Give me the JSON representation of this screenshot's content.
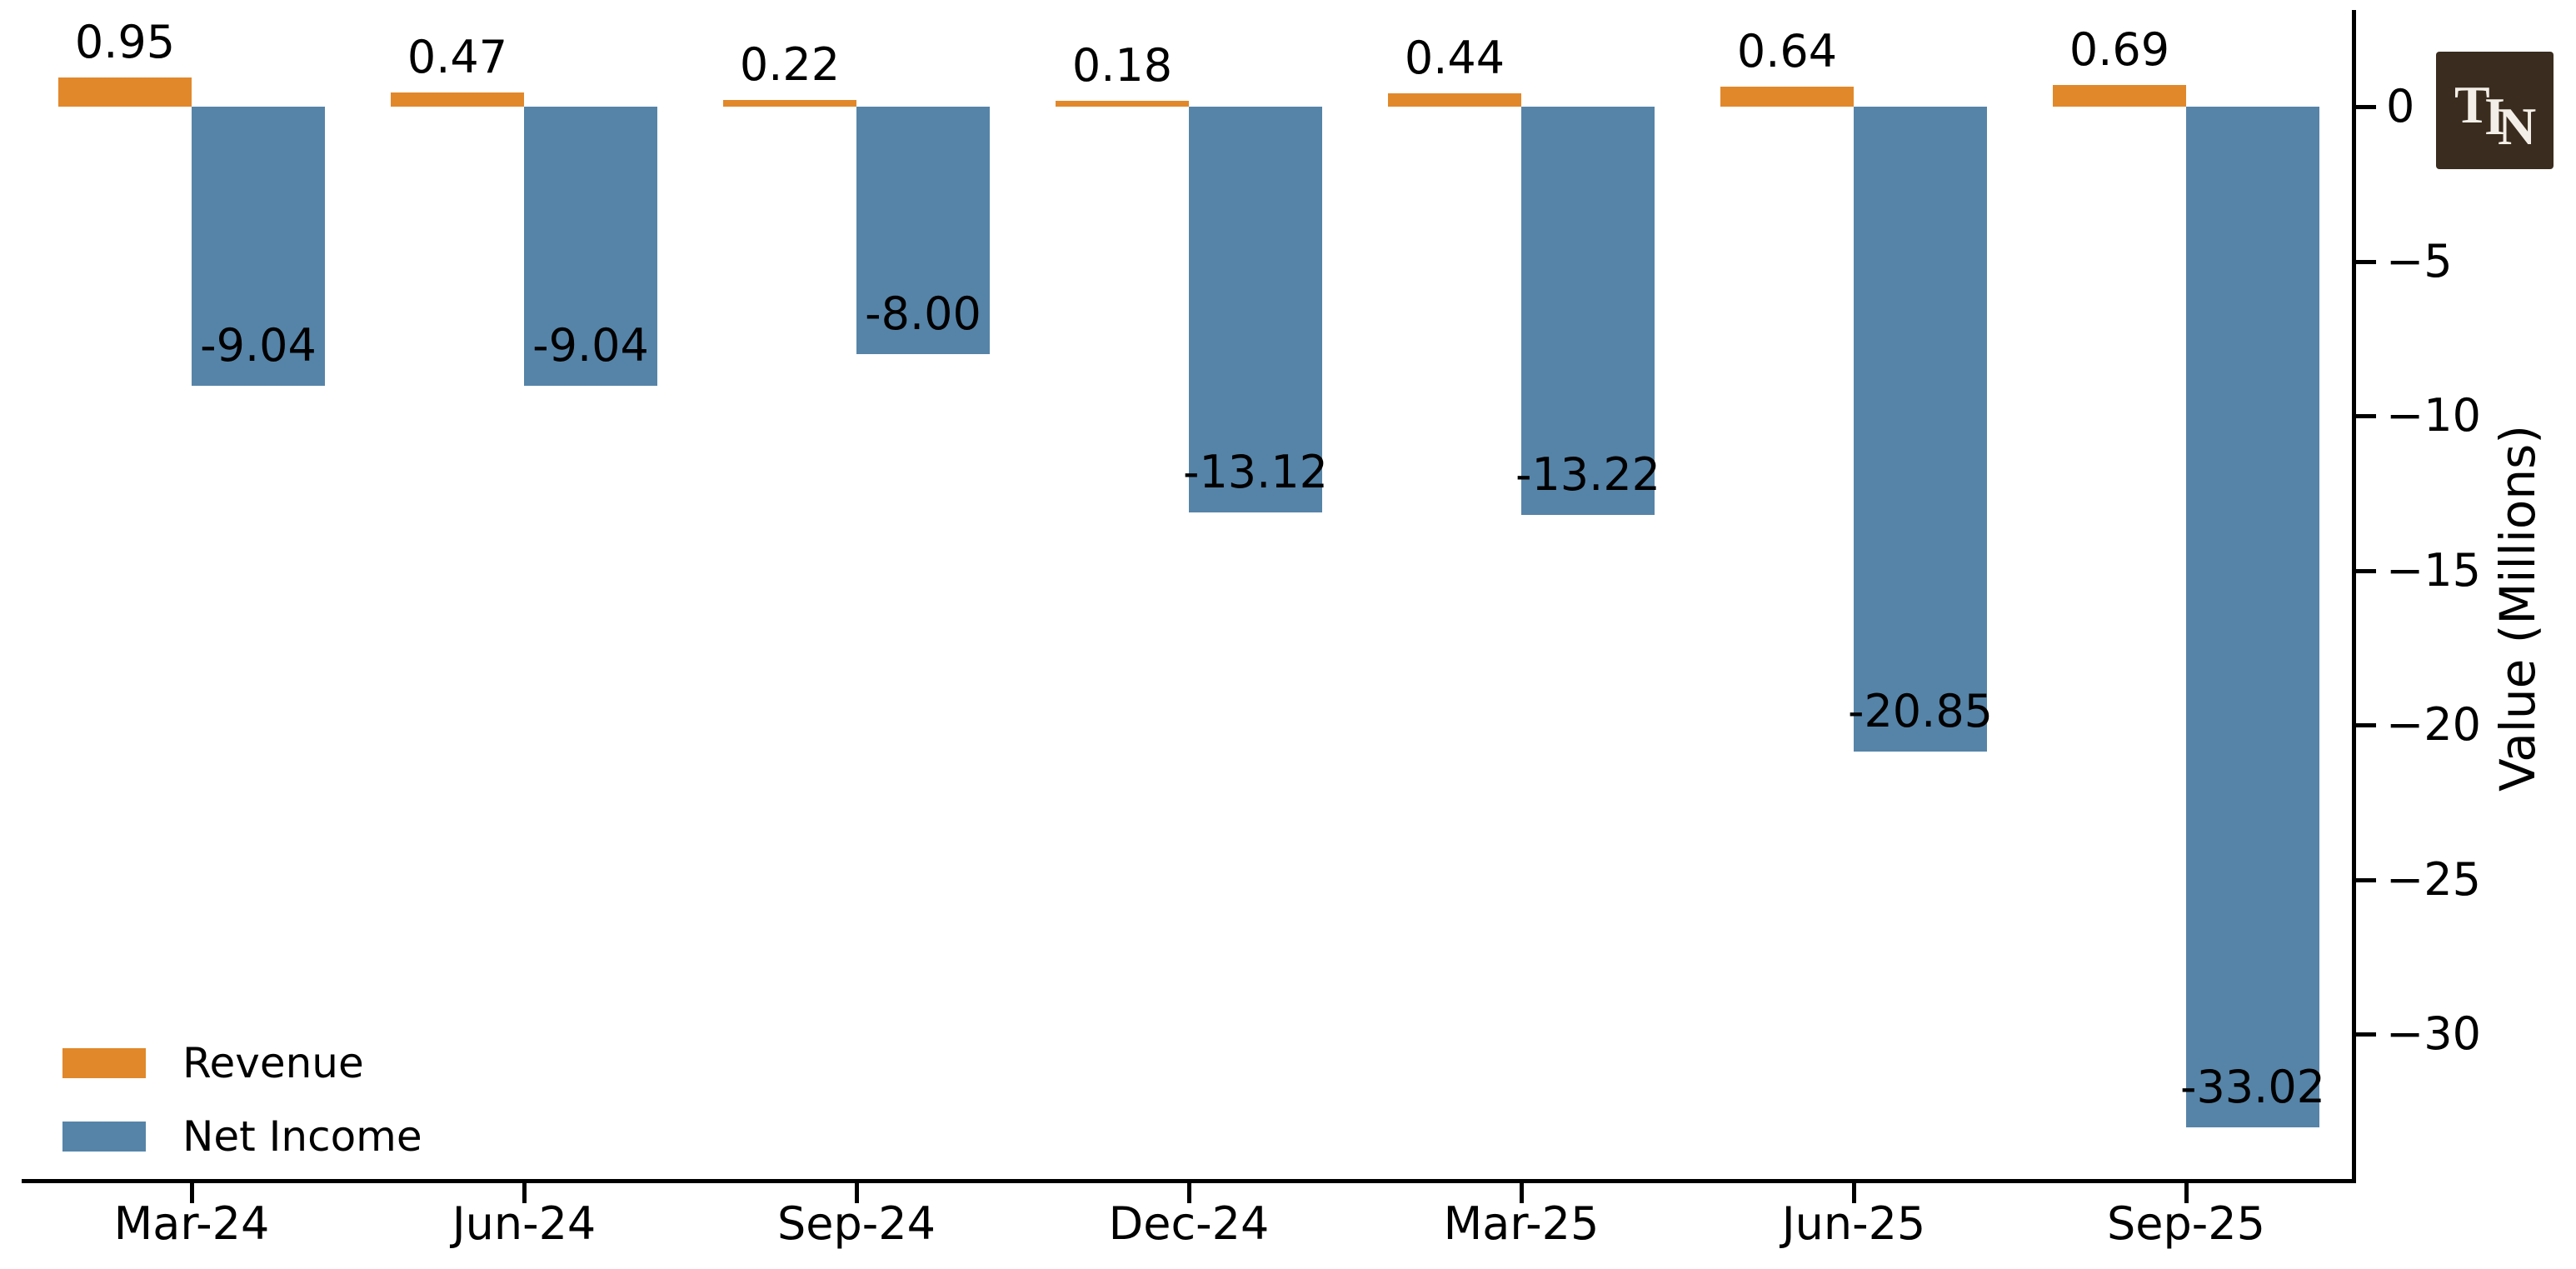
{
  "chart_data": {
    "type": "bar",
    "title": "",
    "xlabel": "",
    "ylabel": "Value (Millions)",
    "y_axis_side": "right",
    "categories": [
      "Mar-24",
      "Jun-24",
      "Sep-24",
      "Dec-24",
      "Mar-25",
      "Jun-25",
      "Sep-25"
    ],
    "series": [
      {
        "name": "Revenue",
        "color": "#E1882B",
        "values": [
          0.95,
          0.47,
          0.22,
          0.18,
          0.44,
          0.64,
          0.69
        ],
        "labels": [
          "0.95",
          "0.47",
          "0.22",
          "0.18",
          "0.44",
          "0.64",
          "0.69"
        ]
      },
      {
        "name": "Net Income",
        "color": "#5684A8",
        "values": [
          -9.04,
          -9.04,
          -8.0,
          -13.12,
          -13.22,
          -20.85,
          -33.02
        ],
        "labels": [
          "-9.04",
          "-9.04",
          "-8.00",
          "-13.12",
          "-13.22",
          "-20.85",
          "-33.02"
        ]
      }
    ],
    "y_ticks": [
      {
        "label": "0",
        "value": 0
      },
      {
        "label": "−5",
        "value": -5
      },
      {
        "label": "−10",
        "value": -10
      },
      {
        "label": "−15",
        "value": -15
      },
      {
        "label": "−20",
        "value": -20
      },
      {
        "label": "−25",
        "value": -25
      },
      {
        "label": "−30",
        "value": -30
      }
    ],
    "ylim": [
      -34.7,
      3.1
    ],
    "grid": false,
    "legend_position": "lower-left"
  },
  "logo": {
    "monogram": "TIN",
    "letters": [
      "T",
      "I",
      "N"
    ],
    "background": "#3A2C1E",
    "foreground": "#F3EFE8"
  }
}
